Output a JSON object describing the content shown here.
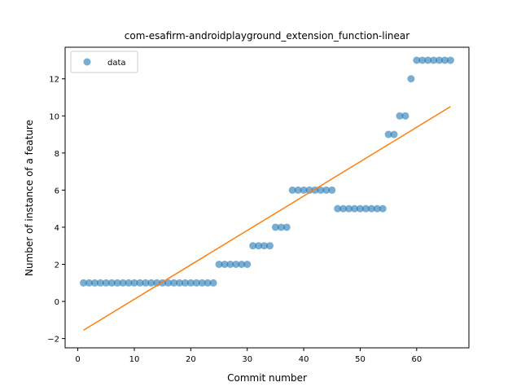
{
  "chart_data": {
    "type": "scatter",
    "title": "com-esafirm-androidplayground_extension_function-linear",
    "xlabel": "Commit number",
    "ylabel": "Number of instance of a feature",
    "xlim": [
      -2.25,
      69.25
    ],
    "ylim": [
      -2.5,
      13.7
    ],
    "xticks": [
      0,
      10,
      20,
      30,
      40,
      50,
      60
    ],
    "yticks": [
      -2,
      0,
      2,
      4,
      6,
      8,
      10,
      12
    ],
    "grid": false,
    "legend_position": "top-left",
    "series": [
      {
        "name": "data",
        "kind": "scatter",
        "color": "#1f77b4",
        "x": [
          1,
          2,
          3,
          4,
          5,
          6,
          7,
          8,
          9,
          10,
          11,
          12,
          13,
          14,
          15,
          16,
          17,
          18,
          19,
          20,
          21,
          22,
          23,
          24,
          25,
          26,
          27,
          28,
          29,
          30,
          31,
          32,
          33,
          34,
          35,
          36,
          37,
          38,
          39,
          40,
          41,
          42,
          43,
          44,
          45,
          46,
          47,
          48,
          49,
          50,
          51,
          52,
          53,
          54,
          55,
          56,
          57,
          58,
          59,
          60,
          61,
          62,
          63,
          64,
          65,
          66
        ],
        "y": [
          1,
          1,
          1,
          1,
          1,
          1,
          1,
          1,
          1,
          1,
          1,
          1,
          1,
          1,
          1,
          1,
          1,
          1,
          1,
          1,
          1,
          1,
          1,
          1,
          2,
          2,
          2,
          2,
          2,
          2,
          3,
          3,
          3,
          3,
          4,
          4,
          4,
          6,
          6,
          6,
          6,
          6,
          6,
          6,
          6,
          5,
          5,
          5,
          5,
          5,
          5,
          5,
          5,
          5,
          9,
          9,
          10,
          10,
          12,
          13,
          13,
          13,
          13,
          13,
          13,
          13
        ]
      },
      {
        "kind": "line",
        "color": "#ff7f0e",
        "x": [
          1,
          66
        ],
        "y": [
          -1.55,
          10.5
        ]
      }
    ]
  }
}
